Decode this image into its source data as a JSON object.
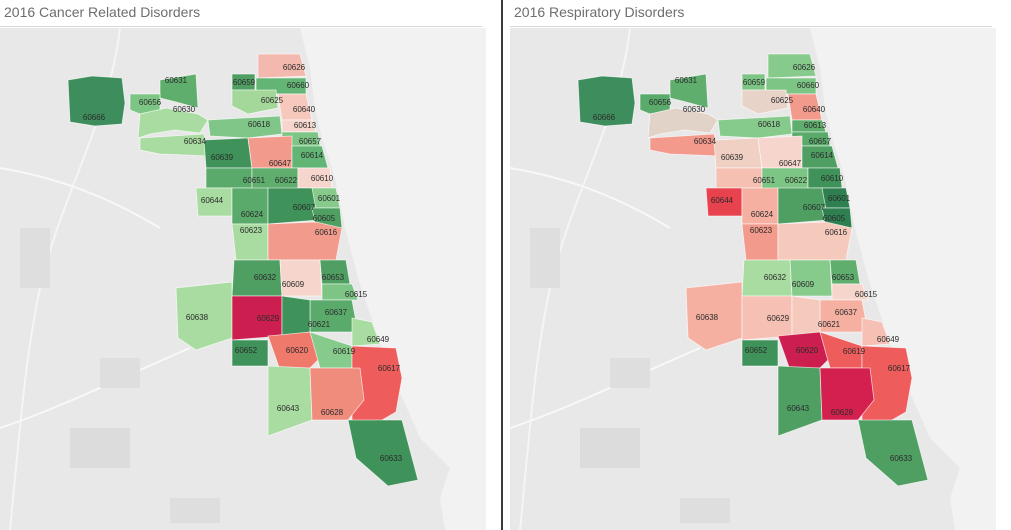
{
  "maps": [
    {
      "title": "2016 Cancer Related Disorders",
      "zips": [
        {
          "zip": "60666",
          "color": "#3d8e5c"
        },
        {
          "zip": "60631",
          "color": "#5fae6d"
        },
        {
          "zip": "60656",
          "color": "#7cc584"
        },
        {
          "zip": "60630",
          "color": "#a9dca0"
        },
        {
          "zip": "60659",
          "color": "#4f9f63"
        },
        {
          "zip": "60626",
          "color": "#f3b9ae"
        },
        {
          "zip": "60660",
          "color": "#62b574"
        },
        {
          "zip": "60625",
          "color": "#a3d89a"
        },
        {
          "zip": "60640",
          "color": "#f7c9bd"
        },
        {
          "zip": "60613",
          "color": "#f6d5cc"
        },
        {
          "zip": "60618",
          "color": "#7fc688"
        },
        {
          "zip": "60634",
          "color": "#a9dca0"
        },
        {
          "zip": "60657",
          "color": "#7dc584"
        },
        {
          "zip": "60639",
          "color": "#3f9259"
        },
        {
          "zip": "60647",
          "color": "#f29a8c"
        },
        {
          "zip": "60614",
          "color": "#62b574"
        },
        {
          "zip": "60651",
          "color": "#5aab6b"
        },
        {
          "zip": "60622",
          "color": "#5fae6d"
        },
        {
          "zip": "60610",
          "color": "#f6d5cc"
        },
        {
          "zip": "60644",
          "color": "#a9dca0"
        },
        {
          "zip": "60601",
          "color": "#86ca8c"
        },
        {
          "zip": "60624",
          "color": "#5aab6b"
        },
        {
          "zip": "60607",
          "color": "#3f9259"
        },
        {
          "zip": "60605",
          "color": "#4f9f63"
        },
        {
          "zip": "60623",
          "color": "#a9dca0"
        },
        {
          "zip": "60616",
          "color": "#f29a8c"
        },
        {
          "zip": "60632",
          "color": "#4f9f63"
        },
        {
          "zip": "60609",
          "color": "#f6d5cc"
        },
        {
          "zip": "60653",
          "color": "#4f9f63"
        },
        {
          "zip": "60615",
          "color": "#7dc584"
        },
        {
          "zip": "60638",
          "color": "#a9dca0"
        },
        {
          "zip": "60629",
          "color": "#cc1f4f"
        },
        {
          "zip": "60637",
          "color": "#5aab6b"
        },
        {
          "zip": "60621",
          "color": "#3f9259"
        },
        {
          "zip": "60649",
          "color": "#a9dca0"
        },
        {
          "zip": "60652",
          "color": "#3f9259"
        },
        {
          "zip": "60620",
          "color": "#ef7a6c"
        },
        {
          "zip": "60619",
          "color": "#86ca8c"
        },
        {
          "zip": "60617",
          "color": "#ee5c5c"
        },
        {
          "zip": "60643",
          "color": "#a9dca0"
        },
        {
          "zip": "60628",
          "color": "#f08c7c"
        },
        {
          "zip": "60633",
          "color": "#3f9259"
        }
      ]
    },
    {
      "title": "2016 Respiratory Disorders",
      "zips": [
        {
          "zip": "60666",
          "color": "#3d8e5c"
        },
        {
          "zip": "60631",
          "color": "#5fae6d"
        },
        {
          "zip": "60656",
          "color": "#5aab6b"
        },
        {
          "zip": "60630",
          "color": "#e2d3c8"
        },
        {
          "zip": "60659",
          "color": "#7dc584"
        },
        {
          "zip": "60626",
          "color": "#86ca8c"
        },
        {
          "zip": "60660",
          "color": "#7dc584"
        },
        {
          "zip": "60625",
          "color": "#e8d3c8"
        },
        {
          "zip": "60640",
          "color": "#f29a8c"
        },
        {
          "zip": "60613",
          "color": "#5fae6d"
        },
        {
          "zip": "60618",
          "color": "#86ca8c"
        },
        {
          "zip": "60634",
          "color": "#f39a8c"
        },
        {
          "zip": "60657",
          "color": "#5aab6b"
        },
        {
          "zip": "60639",
          "color": "#f0d0c2"
        },
        {
          "zip": "60647",
          "color": "#f6d5cc"
        },
        {
          "zip": "60614",
          "color": "#4f9f63"
        },
        {
          "zip": "60651",
          "color": "#f5c0b2"
        },
        {
          "zip": "60622",
          "color": "#7dc584"
        },
        {
          "zip": "60610",
          "color": "#3f9259"
        },
        {
          "zip": "60644",
          "color": "#e8424f"
        },
        {
          "zip": "60601",
          "color": "#2f8050"
        },
        {
          "zip": "60624",
          "color": "#f5b0a2"
        },
        {
          "zip": "60607",
          "color": "#4f9f63"
        },
        {
          "zip": "60605",
          "color": "#2f8050"
        },
        {
          "zip": "60623",
          "color": "#f29a8c"
        },
        {
          "zip": "60616",
          "color": "#f6c9bd"
        },
        {
          "zip": "60632",
          "color": "#a9dca0"
        },
        {
          "zip": "60609",
          "color": "#86ca8c"
        },
        {
          "zip": "60653",
          "color": "#5fae6d"
        },
        {
          "zip": "60615",
          "color": "#f6d5cc"
        },
        {
          "zip": "60638",
          "color": "#f5b0a2"
        },
        {
          "zip": "60629",
          "color": "#f6c0b4"
        },
        {
          "zip": "60637",
          "color": "#f5b0a2"
        },
        {
          "zip": "60621",
          "color": "#f6c9bd"
        },
        {
          "zip": "60649",
          "color": "#f6c0b4"
        },
        {
          "zip": "60652",
          "color": "#3f9259"
        },
        {
          "zip": "60620",
          "color": "#cc1f4f"
        },
        {
          "zip": "60619",
          "color": "#ee5c5c"
        },
        {
          "zip": "60617",
          "color": "#ee5c5c"
        },
        {
          "zip": "60643",
          "color": "#4f9f63"
        },
        {
          "zip": "60628",
          "color": "#d4204f"
        },
        {
          "zip": "60633",
          "color": "#4f9f63"
        }
      ]
    }
  ]
}
